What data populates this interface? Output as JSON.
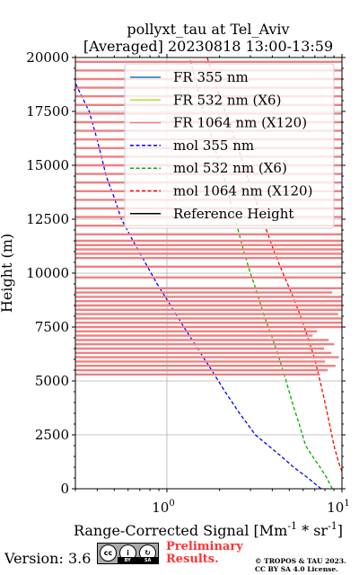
{
  "chart_data": {
    "type": "line",
    "title": "pollyxt_tau at Tel_Aviv",
    "subtitle": "[Averaged] 20230818 13:00-13:59",
    "xlabel": "Range-Corrected Signal [Mm^-1 * sr^-1]",
    "ylabel": "Height (m)",
    "xscale": "log",
    "xlim": [
      0.3,
      10
    ],
    "ylim": [
      0,
      20000
    ],
    "x_ticks": [
      {
        "value": 1,
        "label": "10^0"
      },
      {
        "value": 10,
        "label": "10^1"
      }
    ],
    "y_ticks": [
      0,
      2500,
      5000,
      7500,
      10000,
      12500,
      15000,
      17500,
      20000
    ],
    "y_tick_labels": [
      "0",
      "2500",
      "5000",
      "7500",
      "10000",
      "12500",
      "15000",
      "17500",
      "20000"
    ],
    "grid": true,
    "legend_position": "top-right",
    "legend": [
      {
        "label": "FR 355 nm",
        "color": "#1f77b4",
        "style": "solid"
      },
      {
        "label": "FR 532 nm (X6)",
        "color": "#a8e23a",
        "style": "solid"
      },
      {
        "label": "FR 1064 nm (X120)",
        "color": "#f08080",
        "style": "solid"
      },
      {
        "label": "mol 355 nm",
        "color": "#0000ff",
        "style": "dashed"
      },
      {
        "label": "mol 532 nm (X6)",
        "color": "#00b000",
        "style": "dashed"
      },
      {
        "label": "mol 1064 nm (X120)",
        "color": "#ff0000",
        "style": "dashed"
      },
      {
        "label": "Reference Height",
        "color": "#000000",
        "style": "solid"
      }
    ],
    "series": [
      {
        "name": "mol 355 nm",
        "color": "#0000ff",
        "style": "dashed",
        "points": [
          [
            7.6,
            0
          ],
          [
            6.4,
            500
          ],
          [
            5.3,
            1000
          ],
          [
            4.5,
            1500
          ],
          [
            3.8,
            2000
          ],
          [
            3.2,
            2500
          ],
          [
            2.6,
            3500
          ],
          [
            2.15,
            4500
          ],
          [
            1.8,
            5500
          ],
          [
            1.5,
            6500
          ],
          [
            1.25,
            7500
          ],
          [
            1.05,
            8500
          ],
          [
            0.88,
            9500
          ],
          [
            0.75,
            10500
          ],
          [
            0.64,
            11500
          ],
          [
            0.55,
            12500
          ],
          [
            0.5,
            13500
          ],
          [
            0.45,
            14500
          ],
          [
            0.42,
            15500
          ],
          [
            0.39,
            16500
          ],
          [
            0.36,
            17500
          ],
          [
            0.3,
            18800
          ]
        ]
      },
      {
        "name": "mol 532 nm (X6)",
        "color": "#00b000",
        "style": "dashed",
        "points": [
          [
            8.8,
            0
          ],
          [
            8.2,
            500
          ],
          [
            7.5,
            1000
          ],
          [
            6.8,
            1500
          ],
          [
            6.2,
            2000
          ],
          [
            5.7,
            3000
          ],
          [
            5.2,
            4000
          ],
          [
            4.8,
            5000
          ],
          [
            4.4,
            6000
          ],
          [
            4.0,
            7000
          ],
          [
            3.6,
            8000
          ],
          [
            3.3,
            9000
          ],
          [
            3.0,
            10000
          ],
          [
            2.75,
            11000
          ],
          [
            2.55,
            12000
          ],
          [
            2.35,
            13000
          ],
          [
            2.2,
            14000
          ],
          [
            2.0,
            15000
          ],
          [
            1.85,
            16000
          ],
          [
            1.7,
            17000
          ],
          [
            1.55,
            18000
          ],
          [
            1.45,
            19000
          ],
          [
            1.35,
            20000
          ]
        ]
      },
      {
        "name": "mol 1064 nm (X120)",
        "color": "#ff0000",
        "style": "dashed",
        "points": [
          [
            10.0,
            800
          ],
          [
            9.6,
            1200
          ],
          [
            9.0,
            2000
          ],
          [
            8.5,
            3000
          ],
          [
            8.0,
            4000
          ],
          [
            7.5,
            5000
          ],
          [
            7.0,
            6000
          ],
          [
            6.4,
            7000
          ],
          [
            5.8,
            8000
          ],
          [
            5.2,
            9000
          ],
          [
            4.6,
            10000
          ],
          [
            4.1,
            11000
          ],
          [
            3.7,
            12000
          ],
          [
            3.35,
            13000
          ],
          [
            3.0,
            14000
          ],
          [
            2.75,
            15000
          ],
          [
            2.5,
            16000
          ],
          [
            2.25,
            17000
          ],
          [
            2.05,
            18000
          ],
          [
            1.85,
            19000
          ],
          [
            1.7,
            20000
          ]
        ]
      },
      {
        "name": "FR 1064 nm (X120)",
        "color": "#f08080",
        "style": "noisy-horizontal-segments",
        "segments": [
          {
            "h": 5300,
            "x": 7.5
          },
          {
            "h": 5500,
            "x": 8.3
          },
          {
            "h": 5700,
            "x": 9.2
          },
          {
            "h": 5900,
            "x": 8.0
          },
          {
            "h": 6100,
            "x": 9.6
          },
          {
            "h": 6300,
            "x": 8.7
          },
          {
            "h": 6500,
            "x": 7.9
          },
          {
            "h": 6700,
            "x": 9.0
          },
          {
            "h": 6900,
            "x": 8.4
          },
          {
            "h": 7100,
            "x": 6.8
          },
          {
            "h": 7300,
            "x": 7.2
          },
          {
            "h": 7500,
            "x": 10.0
          },
          {
            "h": 7700,
            "x": 10.0
          },
          {
            "h": 7900,
            "x": 10.0
          },
          {
            "h": 8100,
            "x": 9.5
          },
          {
            "h": 8300,
            "x": 10.0
          },
          {
            "h": 8500,
            "x": 10.0
          },
          {
            "h": 8700,
            "x": 10.0
          },
          {
            "h": 8900,
            "x": 10.0
          },
          {
            "h": 9100,
            "x": 8.8
          },
          {
            "h": 9300,
            "x": 10.0
          },
          {
            "h": 9800,
            "x": 10.0
          },
          {
            "h": 10300,
            "x": 10.0
          },
          {
            "h": 10700,
            "x": 10.0
          },
          {
            "h": 10900,
            "x": 10.0
          },
          {
            "h": 11100,
            "x": 10.0
          },
          {
            "h": 11300,
            "x": 10.0
          },
          {
            "h": 11500,
            "x": 10.0
          },
          {
            "h": 11800,
            "x": 10.0
          },
          {
            "h": 12200,
            "x": 10.0
          },
          {
            "h": 12600,
            "x": 10.0
          },
          {
            "h": 13000,
            "x": 10.0
          },
          {
            "h": 13400,
            "x": 10.0
          },
          {
            "h": 13800,
            "x": 10.0
          },
          {
            "h": 14200,
            "x": 10.0
          },
          {
            "h": 14600,
            "x": 10.0
          },
          {
            "h": 15000,
            "x": 10.0
          },
          {
            "h": 15400,
            "x": 10.0
          },
          {
            "h": 15800,
            "x": 10.0
          },
          {
            "h": 16200,
            "x": 10.0
          },
          {
            "h": 16600,
            "x": 10.0
          },
          {
            "h": 17000,
            "x": 10.0
          },
          {
            "h": 17400,
            "x": 10.0
          },
          {
            "h": 17800,
            "x": 10.0
          },
          {
            "h": 18200,
            "x": 10.0
          },
          {
            "h": 18600,
            "x": 10.0
          },
          {
            "h": 19000,
            "x": 10.0
          },
          {
            "h": 19400,
            "x": 10.0
          },
          {
            "h": 19800,
            "x": 10.0
          }
        ]
      }
    ]
  },
  "footer": {
    "version": "Version: 3.6",
    "cc_symbols": [
      "cc",
      "i",
      "↻"
    ],
    "cc_strip": [
      "BY",
      "SA"
    ],
    "preliminary_line1": "Preliminary",
    "preliminary_line2": "Results.",
    "copyright_line1": "© TROPOS & TAU 2023.",
    "copyright_line2": "CC BY SA 4.0 License."
  }
}
